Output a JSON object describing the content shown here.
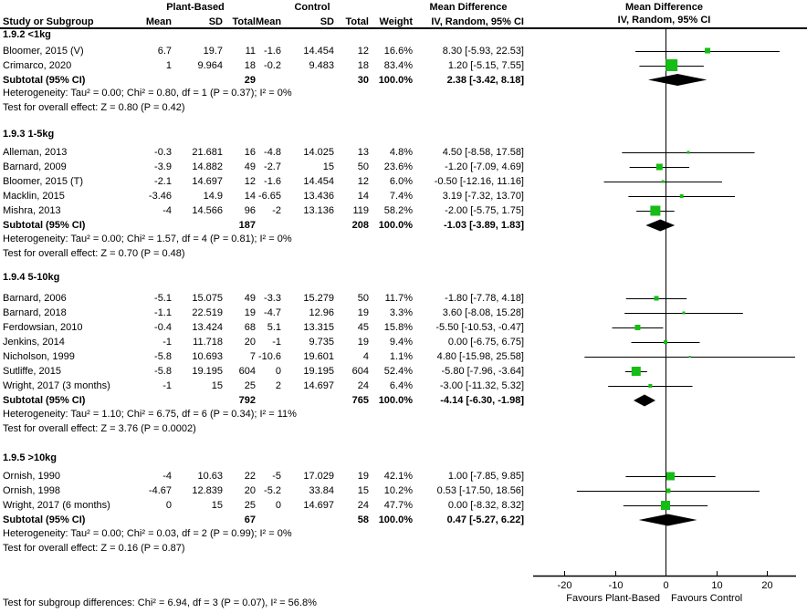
{
  "header": {
    "study_col": "Study or Subgroup",
    "group1": "Plant-Based",
    "group2": "Control",
    "mean": "Mean",
    "sd": "SD",
    "total": "Total",
    "weight": "Weight",
    "md_title": "Mean Difference",
    "md_method": "IV, Random, 95% CI"
  },
  "axis": {
    "ticks": [
      -20,
      -10,
      0,
      10,
      20
    ],
    "favours_left": "Favours Plant-Based",
    "favours_right": "Favours Control"
  },
  "footer": "Test for subgroup differences: Chi² = 6.94, df = 3 (P = 0.07), I² = 56.8%",
  "colors": {
    "marker_green": "#15BD15",
    "diamond_black": "#000000",
    "text": "#000000",
    "background": "#FFFFFF"
  },
  "chart_data": {
    "type": "forest",
    "effect_measure": "Mean Difference IV, Random, 95% CI",
    "xlim": [
      -26,
      26
    ],
    "sections": [
      {
        "label": "1.9.2 <1kg",
        "studies": [
          {
            "study": "Bloomer, 2015 (V)",
            "pb_mean": "6.7",
            "pb_sd": "19.7",
            "pb_total": "11",
            "c_mean": "-1.6",
            "c_sd": "14.454",
            "c_total": "12",
            "weight": "16.6%",
            "ci_label": "8.30 [-5.93, 22.53]",
            "md": 8.3,
            "ci_low": -5.93,
            "ci_high": 22.53,
            "weight_pct": 16.6
          },
          {
            "study": "Crimarco, 2020",
            "pb_mean": "1",
            "pb_sd": "9.964",
            "pb_total": "18",
            "c_mean": "-0.2",
            "c_sd": "9.483",
            "c_total": "18",
            "weight": "83.4%",
            "ci_label": "1.20 [-5.15, 7.55]",
            "md": 1.2,
            "ci_low": -5.15,
            "ci_high": 7.55,
            "weight_pct": 83.4
          }
        ],
        "subtotal": {
          "label": "Subtotal (95% CI)",
          "pb_total": "29",
          "c_total": "30",
          "weight": "100.0%",
          "ci_label": "2.38 [-3.42, 8.18]",
          "md": 2.38,
          "ci_low": -3.42,
          "ci_high": 8.18
        },
        "heterogeneity": "Heterogeneity: Tau² = 0.00; Chi² = 0.80, df = 1 (P = 0.37); I² = 0%",
        "overall_effect": "Test for overall effect: Z = 0.80 (P = 0.42)"
      },
      {
        "label": "1.9.3 1-5kg",
        "studies": [
          {
            "study": "Alleman, 2013",
            "pb_mean": "-0.3",
            "pb_sd": "21.681",
            "pb_total": "16",
            "c_mean": "-4.8",
            "c_sd": "14.025",
            "c_total": "13",
            "weight": "4.8%",
            "ci_label": "4.50 [-8.58, 17.58]",
            "md": 4.5,
            "ci_low": -8.58,
            "ci_high": 17.58,
            "weight_pct": 4.8
          },
          {
            "study": "Barnard, 2009",
            "pb_mean": "-3.9",
            "pb_sd": "14.882",
            "pb_total": "49",
            "c_mean": "-2.7",
            "c_sd": "15",
            "c_total": "50",
            "weight": "23.6%",
            "ci_label": "-1.20 [-7.09, 4.69]",
            "md": -1.2,
            "ci_low": -7.09,
            "ci_high": 4.69,
            "weight_pct": 23.6
          },
          {
            "study": "Bloomer, 2015 (T)",
            "pb_mean": "-2.1",
            "pb_sd": "14.697",
            "pb_total": "12",
            "c_mean": "-1.6",
            "c_sd": "14.454",
            "c_total": "12",
            "weight": "6.0%",
            "ci_label": "-0.50 [-12.16, 11.16]",
            "md": -0.5,
            "ci_low": -12.16,
            "ci_high": 11.16,
            "weight_pct": 6.0
          },
          {
            "study": "Macklin, 2015",
            "pb_mean": "-3.46",
            "pb_sd": "14.9",
            "pb_total": "14",
            "c_mean": "-6.65",
            "c_sd": "13.436",
            "c_total": "14",
            "weight": "7.4%",
            "ci_label": "3.19 [-7.32, 13.70]",
            "md": 3.19,
            "ci_low": -7.32,
            "ci_high": 13.7,
            "weight_pct": 7.4
          },
          {
            "study": "Mishra, 2013",
            "pb_mean": "-4",
            "pb_sd": "14.566",
            "pb_total": "96",
            "c_mean": "-2",
            "c_sd": "13.136",
            "c_total": "119",
            "weight": "58.2%",
            "ci_label": "-2.00 [-5.75, 1.75]",
            "md": -2.0,
            "ci_low": -5.75,
            "ci_high": 1.75,
            "weight_pct": 58.2
          }
        ],
        "subtotal": {
          "label": "Subtotal (95% CI)",
          "pb_total": "187",
          "c_total": "208",
          "weight": "100.0%",
          "ci_label": "-1.03 [-3.89, 1.83]",
          "md": -1.03,
          "ci_low": -3.89,
          "ci_high": 1.83
        },
        "heterogeneity": "Heterogeneity: Tau² = 0.00; Chi² = 1.57, df = 4 (P = 0.81); I² = 0%",
        "overall_effect": "Test for overall effect: Z = 0.70 (P = 0.48)"
      },
      {
        "label": "1.9.4 5-10kg",
        "studies": [
          {
            "study": "Barnard, 2006",
            "pb_mean": "-5.1",
            "pb_sd": "15.075",
            "pb_total": "49",
            "c_mean": "-3.3",
            "c_sd": "15.279",
            "c_total": "50",
            "weight": "11.7%",
            "ci_label": "-1.80 [-7.78, 4.18]",
            "md": -1.8,
            "ci_low": -7.78,
            "ci_high": 4.18,
            "weight_pct": 11.7
          },
          {
            "study": "Barnard, 2018",
            "pb_mean": "-1.1",
            "pb_sd": "22.519",
            "pb_total": "19",
            "c_mean": "-4.7",
            "c_sd": "12.96",
            "c_total": "19",
            "weight": "3.3%",
            "ci_label": "3.60 [-8.08, 15.28]",
            "md": 3.6,
            "ci_low": -8.08,
            "ci_high": 15.28,
            "weight_pct": 3.3
          },
          {
            "study": "Ferdowsian, 2010",
            "pb_mean": "-0.4",
            "pb_sd": "13.424",
            "pb_total": "68",
            "c_mean": "5.1",
            "c_sd": "13.315",
            "c_total": "45",
            "weight": "15.8%",
            "ci_label": "-5.50 [-10.53, -0.47]",
            "md": -5.5,
            "ci_low": -10.53,
            "ci_high": -0.47,
            "weight_pct": 15.8
          },
          {
            "study": "Jenkins, 2014",
            "pb_mean": "-1",
            "pb_sd": "11.718",
            "pb_total": "20",
            "c_mean": "-1",
            "c_sd": "9.735",
            "c_total": "19",
            "weight": "9.4%",
            "ci_label": "0.00 [-6.75, 6.75]",
            "md": 0.0,
            "ci_low": -6.75,
            "ci_high": 6.75,
            "weight_pct": 9.4
          },
          {
            "study": "Nicholson, 1999",
            "pb_mean": "-5.8",
            "pb_sd": "10.693",
            "pb_total": "7",
            "c_mean": "-10.6",
            "c_sd": "19.601",
            "c_total": "4",
            "weight": "1.1%",
            "ci_label": "4.80 [-15.98, 25.58]",
            "md": 4.8,
            "ci_low": -15.98,
            "ci_high": 25.58,
            "weight_pct": 1.1
          },
          {
            "study": "Sutliffe, 2015",
            "pb_mean": "-5.8",
            "pb_sd": "19.195",
            "pb_total": "604",
            "c_mean": "0",
            "c_sd": "19.195",
            "c_total": "604",
            "weight": "52.4%",
            "ci_label": "-5.80 [-7.96, -3.64]",
            "md": -5.8,
            "ci_low": -7.96,
            "ci_high": -3.64,
            "weight_pct": 52.4
          },
          {
            "study": "Wright, 2017 (3 months)",
            "pb_mean": "-1",
            "pb_sd": "15",
            "pb_total": "25",
            "c_mean": "2",
            "c_sd": "14.697",
            "c_total": "24",
            "weight": "6.4%",
            "ci_label": "-3.00 [-11.32, 5.32]",
            "md": -3.0,
            "ci_low": -11.32,
            "ci_high": 5.32,
            "weight_pct": 6.4
          }
        ],
        "subtotal": {
          "label": "Subtotal (95% CI)",
          "pb_total": "792",
          "c_total": "765",
          "weight": "100.0%",
          "ci_label": "-4.14 [-6.30, -1.98]",
          "md": -4.14,
          "ci_low": -6.3,
          "ci_high": -1.98
        },
        "heterogeneity": "Heterogeneity: Tau² = 1.10; Chi² = 6.75, df = 6 (P = 0.34); I² = 11%",
        "overall_effect": "Test for overall effect: Z = 3.76 (P = 0.0002)"
      },
      {
        "label": "1.9.5 >10kg",
        "studies": [
          {
            "study": "Ornish, 1990",
            "pb_mean": "-4",
            "pb_sd": "10.63",
            "pb_total": "22",
            "c_mean": "-5",
            "c_sd": "17.029",
            "c_total": "19",
            "weight": "42.1%",
            "ci_label": "1.00 [-7.85, 9.85]",
            "md": 1.0,
            "ci_low": -7.85,
            "ci_high": 9.85,
            "weight_pct": 42.1
          },
          {
            "study": "Ornish, 1998",
            "pb_mean": "-4.67",
            "pb_sd": "12.839",
            "pb_total": "20",
            "c_mean": "-5.2",
            "c_sd": "33.84",
            "c_total": "15",
            "weight": "10.2%",
            "ci_label": "0.53 [-17.50, 18.56]",
            "md": 0.53,
            "ci_low": -17.5,
            "ci_high": 18.56,
            "weight_pct": 10.2
          },
          {
            "study": "Wright, 2017 (6 months)",
            "pb_mean": "0",
            "pb_sd": "15",
            "pb_total": "25",
            "c_mean": "0",
            "c_sd": "14.697",
            "c_total": "24",
            "weight": "47.7%",
            "ci_label": "0.00 [-8.32, 8.32]",
            "md": 0.0,
            "ci_low": -8.32,
            "ci_high": 8.32,
            "weight_pct": 47.7
          }
        ],
        "subtotal": {
          "label": "Subtotal (95% CI)",
          "pb_total": "67",
          "c_total": "58",
          "weight": "100.0%",
          "ci_label": "0.47 [-5.27, 6.22]",
          "md": 0.47,
          "ci_low": -5.27,
          "ci_high": 6.22
        },
        "heterogeneity": "Heterogeneity: Tau² = 0.00; Chi² = 0.03, df = 2 (P = 0.99); I² = 0%",
        "overall_effect": "Test for overall effect: Z = 0.16 (P = 0.87)"
      }
    ]
  }
}
